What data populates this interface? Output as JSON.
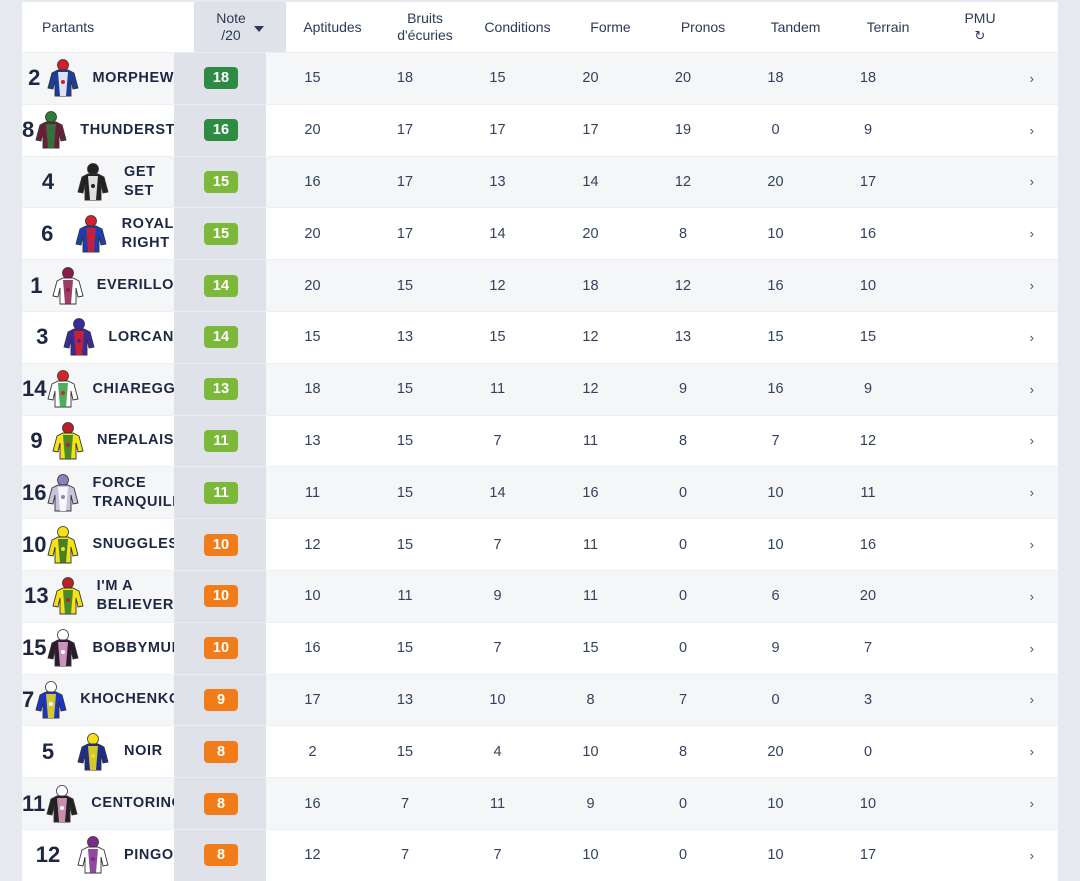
{
  "header": {
    "partants": "Partants",
    "note": "Note",
    "note_scale": "/20",
    "aptitudes": "Aptitudes",
    "bruits_line1": "Bruits",
    "bruits_line2": "d'écuries",
    "conditions": "Conditions",
    "forme": "Forme",
    "pronos": "Pronos",
    "tandem": "Tandem",
    "terrain": "Terrain",
    "pmu": "PMU",
    "refresh_icon": "↻",
    "sort_icon": "caret-down"
  },
  "colors": {
    "badge_dark_green": "#2e8b43",
    "badge_light_green": "#7cb93a",
    "badge_orange": "#f07d1a",
    "fixed_col_bg": "#dfe3e9"
  },
  "rows": [
    {
      "num": "2",
      "name": "MORPHEW",
      "note": "18",
      "apt": "15",
      "bru": "18",
      "con": "15",
      "for": "20",
      "pro": "20",
      "tan": "18",
      "ter": "18",
      "pmu": "",
      "arrow": "›",
      "color": "#2e8b43",
      "silk": "blue-white-stars"
    },
    {
      "num": "8",
      "name": "THUNDERSTRUCK RD",
      "note": "16",
      "apt": "20",
      "bru": "17",
      "con": "17",
      "for": "17",
      "pro": "19",
      "tan": "0",
      "ter": "9",
      "pmu": "",
      "arrow": "›",
      "color": "#2e8b43",
      "silk": "maroon-green"
    },
    {
      "num": "4",
      "name": "GET\nSET",
      "note": "15",
      "apt": "16",
      "bru": "17",
      "con": "13",
      "for": "14",
      "pro": "12",
      "tan": "20",
      "ter": "17",
      "pmu": "",
      "arrow": "›",
      "color": "#7cb93a",
      "silk": "black-white"
    },
    {
      "num": "6",
      "name": "ROYAL\nRIGHT",
      "note": "15",
      "apt": "20",
      "bru": "17",
      "con": "14",
      "for": "20",
      "pro": "8",
      "tan": "10",
      "ter": "16",
      "pmu": "",
      "arrow": "›",
      "color": "#7cb93a",
      "silk": "blue-red-stripe"
    },
    {
      "num": "1",
      "name": "EVERILLO",
      "note": "14",
      "apt": "20",
      "bru": "15",
      "con": "12",
      "for": "18",
      "pro": "12",
      "tan": "16",
      "ter": "10",
      "pmu": "",
      "arrow": "›",
      "color": "#7cb93a",
      "silk": "maroon-white"
    },
    {
      "num": "3",
      "name": "LORCAN",
      "note": "14",
      "apt": "15",
      "bru": "13",
      "con": "15",
      "for": "12",
      "pro": "13",
      "tan": "15",
      "ter": "15",
      "pmu": "",
      "arrow": "›",
      "color": "#7cb93a",
      "silk": "purple-red"
    },
    {
      "num": "14",
      "name": "CHIAREGGIO",
      "note": "13",
      "apt": "18",
      "bru": "15",
      "con": "11",
      "for": "12",
      "pro": "9",
      "tan": "16",
      "ter": "9",
      "pmu": "",
      "arrow": "›",
      "color": "#7cb93a",
      "silk": "white-green-red"
    },
    {
      "num": "9",
      "name": "NEPALAIS",
      "note": "11",
      "apt": "13",
      "bru": "15",
      "con": "7",
      "for": "11",
      "pro": "8",
      "tan": "7",
      "ter": "12",
      "pmu": "",
      "arrow": "›",
      "color": "#7cb93a",
      "silk": "yellow-green"
    },
    {
      "num": "16",
      "name": "FORCE\nTRANQUILLE",
      "note": "11",
      "apt": "11",
      "bru": "15",
      "con": "14",
      "for": "16",
      "pro": "0",
      "tan": "10",
      "ter": "11",
      "pmu": "",
      "arrow": "›",
      "color": "#7cb93a",
      "silk": "lilac-diamonds"
    },
    {
      "num": "10",
      "name": "SNUGGLES",
      "note": "10",
      "apt": "12",
      "bru": "15",
      "con": "7",
      "for": "11",
      "pro": "0",
      "tan": "10",
      "ter": "16",
      "pmu": "",
      "arrow": "›",
      "color": "#f07d1a",
      "silk": "yellow-dots"
    },
    {
      "num": "13",
      "name": "I'M A\nBELIEVER",
      "note": "10",
      "apt": "10",
      "bru": "11",
      "con": "9",
      "for": "11",
      "pro": "0",
      "tan": "6",
      "ter": "20",
      "pmu": "",
      "arrow": "›",
      "color": "#f07d1a",
      "silk": "yellow-green"
    },
    {
      "num": "15",
      "name": "BOBBYMURPHY",
      "note": "10",
      "apt": "16",
      "bru": "15",
      "con": "7",
      "for": "15",
      "pro": "0",
      "tan": "9",
      "ter": "7",
      "pmu": "",
      "arrow": "›",
      "color": "#f07d1a",
      "silk": "pink-diamonds"
    },
    {
      "num": "7",
      "name": "KHOCHENKO",
      "note": "9",
      "apt": "17",
      "bru": "13",
      "con": "10",
      "for": "8",
      "pro": "7",
      "tan": "0",
      "ter": "3",
      "pmu": "",
      "arrow": "›",
      "color": "#f07d1a",
      "silk": "blue-yellow"
    },
    {
      "num": "5",
      "name": "NOIR",
      "note": "8",
      "apt": "2",
      "bru": "15",
      "con": "4",
      "for": "10",
      "pro": "8",
      "tan": "20",
      "ter": "0",
      "pmu": "",
      "arrow": "›",
      "color": "#f07d1a",
      "silk": "navy-yellow"
    },
    {
      "num": "11",
      "name": "CENTORINO",
      "note": "8",
      "apt": "16",
      "bru": "7",
      "con": "11",
      "for": "9",
      "pro": "0",
      "tan": "10",
      "ter": "10",
      "pmu": "",
      "arrow": "›",
      "color": "#f07d1a",
      "silk": "black-pink"
    },
    {
      "num": "12",
      "name": "PINGO",
      "note": "8",
      "apt": "12",
      "bru": "7",
      "con": "7",
      "for": "10",
      "pro": "0",
      "tan": "10",
      "ter": "17",
      "pmu": "",
      "arrow": "›",
      "color": "#f07d1a",
      "silk": "white-purple"
    }
  ]
}
